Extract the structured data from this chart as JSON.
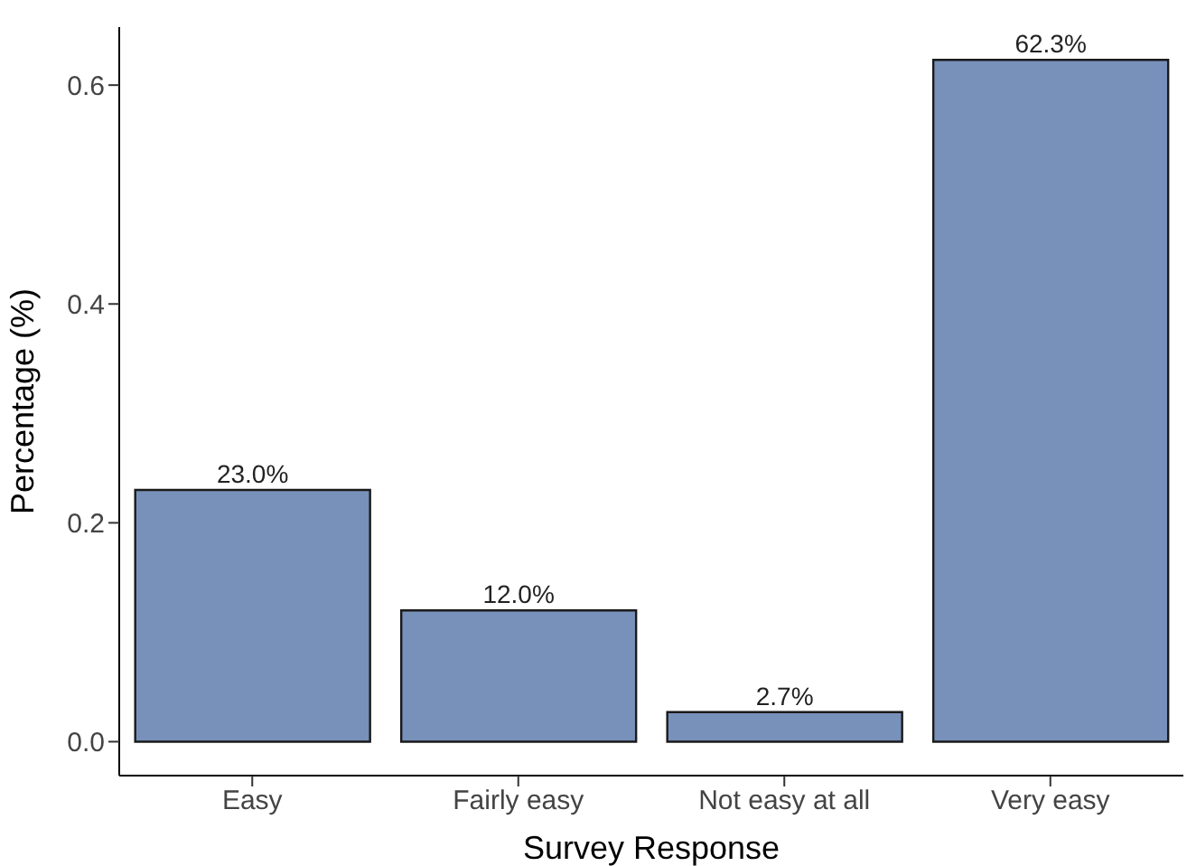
{
  "chart_data": {
    "type": "bar",
    "xlabel": "Survey Response",
    "ylabel": "Percentage (%)",
    "categories": [
      "Easy",
      "Fairly easy",
      "Not easy at all",
      "Very easy"
    ],
    "values": [
      0.23,
      0.12,
      0.027,
      0.623
    ],
    "value_labels": [
      "23.0%",
      "12.0%",
      "2.7%",
      "62.3%"
    ],
    "color": "#7891bb",
    "ylim": [
      -0.031,
      0.653
    ],
    "yticks": [
      {
        "value": 0,
        "label": "0.0"
      },
      {
        "value": 0.2,
        "label": "0.2"
      },
      {
        "value": 0.4,
        "label": "0.4"
      },
      {
        "value": 0.6,
        "label": "0.6"
      }
    ],
    "grid": false,
    "legend": false
  }
}
